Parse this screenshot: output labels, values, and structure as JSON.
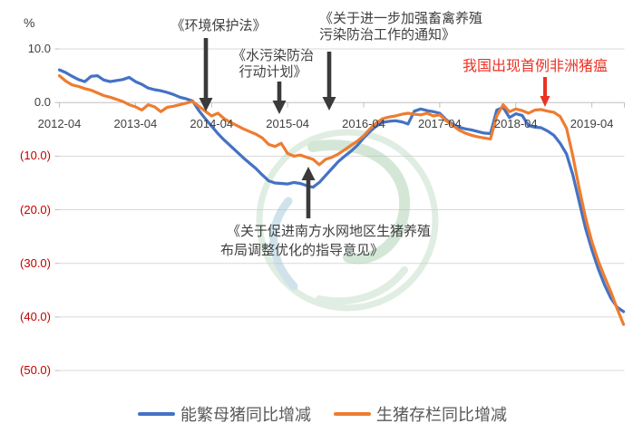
{
  "page": {
    "background": "#ffffff"
  },
  "colors": {
    "axis_text": "#404040",
    "negative_tick_text": "#C00000",
    "gridline": "#D9D9D9",
    "axis_line": "#BFBFBF",
    "annotation_text": "#404040",
    "alert_text": "#EB3223",
    "arrow_dark": "#3A3A3A",
    "legend_text": "#595959",
    "watermark_green": "#C3DCC6",
    "watermark_green_dark": "#ABD0B0",
    "watermark_teal": "#A3C8DA"
  },
  "chart_data": {
    "type": "line",
    "title": "",
    "unit_label": "%",
    "x_start": "2012-04",
    "x_end": "2019-09",
    "x_interval": "monthly",
    "xtick_labels": [
      "2012-04",
      "2013-04",
      "2014-04",
      "2015-04",
      "2016-04",
      "2017-04",
      "2018-04",
      "2019-04"
    ],
    "ytick_labels": [
      {
        "label": "10.0",
        "value": 10,
        "color": "#404040"
      },
      {
        "label": "0.0",
        "value": 0,
        "color": "#404040"
      },
      {
        "label": "(10.0)",
        "value": -10,
        "color": "#C00000"
      },
      {
        "label": "(20.0)",
        "value": -20,
        "color": "#C00000"
      },
      {
        "label": "(30.0)",
        "value": -30,
        "color": "#C00000"
      },
      {
        "label": "(40.0)",
        "value": -40,
        "color": "#C00000"
      },
      {
        "label": "(50.0)",
        "value": -50,
        "color": "#C00000"
      }
    ],
    "ylim": [
      -50,
      10
    ],
    "grid": true,
    "legend_position": "bottom",
    "series": [
      {
        "name": "能繁母猪同比增减",
        "color": "#4472C4",
        "values": [
          6.1,
          5.6,
          4.9,
          4.3,
          3.9,
          4.9,
          5.0,
          4.2,
          3.9,
          4.1,
          4.3,
          4.7,
          3.9,
          3.4,
          2.7,
          2.4,
          2.2,
          1.9,
          1.5,
          1.0,
          0.7,
          0.3,
          -1.5,
          -3.0,
          -4.4,
          -5.8,
          -7.0,
          -8.1,
          -9.2,
          -10.3,
          -11.3,
          -12.3,
          -13.5,
          -14.6,
          -15.0,
          -15.1,
          -15.2,
          -14.9,
          -15.1,
          -15.5,
          -15.8,
          -14.9,
          -13.6,
          -12.3,
          -11.0,
          -10.0,
          -9.1,
          -8.0,
          -6.6,
          -5.4,
          -4.4,
          -3.7,
          -3.5,
          -3.4,
          -3.6,
          -4.0,
          -1.6,
          -1.2,
          -1.5,
          -1.7,
          -2.0,
          -3.2,
          -4.0,
          -4.6,
          -4.9,
          -5.1,
          -5.4,
          -5.7,
          -5.8,
          -1.4,
          -0.9,
          -2.8,
          -2.1,
          -2.4,
          -4.3,
          -4.6,
          -4.7,
          -5.3,
          -6.1,
          -7.6,
          -9.6,
          -13.5,
          -18.5,
          -23.5,
          -27.5,
          -31.0,
          -34.0,
          -36.5,
          -38.2,
          -39.0
        ]
      },
      {
        "name": "生猪存栏同比增减",
        "color": "#ED7D31",
        "values": [
          5.0,
          4.0,
          3.3,
          3.0,
          2.6,
          2.3,
          1.8,
          1.3,
          1.0,
          0.6,
          0.2,
          -0.4,
          -0.8,
          -1.4,
          -0.4,
          -0.8,
          -1.7,
          -0.9,
          -0.7,
          -0.4,
          -0.1,
          0.2,
          -0.7,
          -1.6,
          -2.5,
          -2.0,
          -3.0,
          -3.7,
          -4.3,
          -4.9,
          -5.4,
          -5.9,
          -6.6,
          -7.8,
          -8.2,
          -7.6,
          -9.5,
          -10.0,
          -9.8,
          -10.2,
          -10.6,
          -11.6,
          -10.6,
          -10.2,
          -9.6,
          -8.8,
          -8.0,
          -7.2,
          -6.2,
          -4.9,
          -3.8,
          -3.0,
          -2.7,
          -2.5,
          -2.2,
          -2.0,
          -2.2,
          -2.3,
          -2.0,
          -2.5,
          -2.3,
          -3.4,
          -4.2,
          -5.1,
          -5.7,
          -6.1,
          -6.4,
          -6.6,
          -6.8,
          -2.5,
          -0.4,
          -1.7,
          -1.2,
          -1.5,
          -2.0,
          -1.4,
          -1.3,
          -1.6,
          -1.8,
          -2.6,
          -4.8,
          -10.0,
          -16.0,
          -21.5,
          -26.0,
          -29.5,
          -32.5,
          -35.3,
          -38.5,
          -41.4
        ]
      }
    ],
    "annotations": [
      {
        "id": "env-law",
        "lines": [
          "《环境保护法》"
        ],
        "arrow": "down",
        "color": "#404040"
      },
      {
        "id": "water-plan",
        "lines": [
          "《水污染防治",
          "行动计划》"
        ],
        "arrow": "down",
        "color": "#404040"
      },
      {
        "id": "livestock-notice",
        "lines": [
          "《关于进一步加强畜禽养殖",
          "污染防治工作的通知》"
        ],
        "arrow": "down",
        "color": "#404040"
      },
      {
        "id": "asf-first-case",
        "lines": [
          "我国出现首例非洲猪瘟"
        ],
        "arrow": "down",
        "color": "#EB3223"
      },
      {
        "id": "south-water-guidance",
        "lines": [
          "《关于促进南方水网地区生猪养殖",
          "布局调整优化的指导意见》"
        ],
        "arrow": "up",
        "color": "#404040"
      }
    ]
  }
}
